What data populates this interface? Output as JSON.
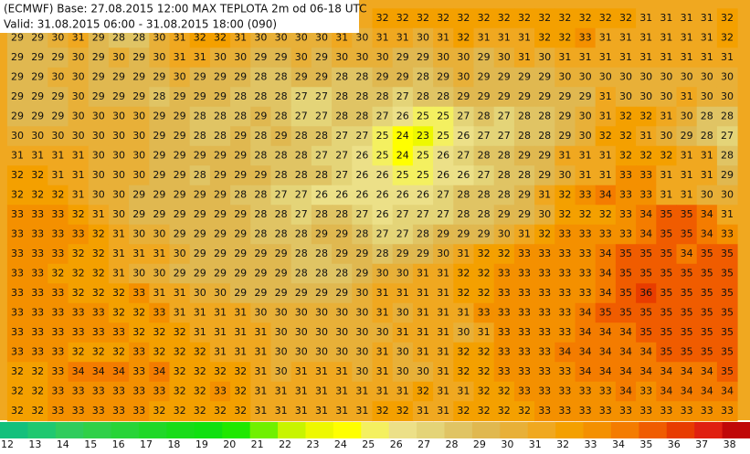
{
  "header": {
    "lines": [
      "(ECMWF) Base: 27.08.2015 12:00 MAX TEPLOTA 2m od 06-18 UTC",
      "Valid: 31.08.2015 06:00 - 31.08.2015 18:00 (090)"
    ]
  },
  "grid": {
    "rows": [
      [
        32,
        32,
        32,
        32,
        32,
        32,
        32,
        32,
        32,
        32,
        32,
        32,
        32,
        31,
        31,
        31,
        31,
        32
      ],
      [
        29,
        29,
        30,
        31,
        29,
        28,
        28,
        30,
        31,
        32,
        32,
        31,
        30,
        30,
        30,
        30,
        31,
        30,
        31,
        31,
        30,
        31,
        32,
        31,
        31,
        31,
        32,
        32,
        33,
        31,
        31,
        31,
        31,
        31,
        31,
        32
      ],
      [
        29,
        29,
        29,
        30,
        29,
        30,
        29,
        30,
        31,
        31,
        30,
        30,
        29,
        29,
        30,
        29,
        30,
        30,
        30,
        29,
        29,
        30,
        30,
        29,
        30,
        31,
        30,
        31,
        31,
        31,
        31,
        31,
        31,
        31,
        31,
        31
      ],
      [
        29,
        29,
        30,
        30,
        29,
        29,
        29,
        29,
        30,
        29,
        29,
        29,
        28,
        28,
        29,
        29,
        28,
        28,
        29,
        29,
        28,
        29,
        30,
        29,
        29,
        29,
        29,
        30,
        30,
        30,
        30,
        30,
        30,
        30,
        30,
        30
      ],
      [
        29,
        29,
        29,
        30,
        29,
        29,
        29,
        28,
        29,
        29,
        29,
        28,
        28,
        28,
        27,
        27,
        28,
        28,
        28,
        27,
        28,
        28,
        29,
        29,
        29,
        29,
        29,
        29,
        29,
        31,
        30,
        30,
        30,
        31,
        30,
        30
      ],
      [
        29,
        29,
        29,
        30,
        30,
        30,
        30,
        29,
        29,
        28,
        28,
        28,
        29,
        28,
        27,
        27,
        28,
        28,
        27,
        26,
        25,
        25,
        27,
        28,
        27,
        28,
        28,
        29,
        30,
        31,
        32,
        32,
        31,
        30,
        28,
        28
      ],
      [
        30,
        30,
        30,
        30,
        30,
        30,
        30,
        29,
        29,
        28,
        28,
        29,
        28,
        29,
        28,
        28,
        27,
        27,
        25,
        24,
        23,
        25,
        26,
        27,
        27,
        28,
        28,
        29,
        30,
        32,
        32,
        31,
        30,
        29,
        28,
        27
      ],
      [
        31,
        31,
        31,
        31,
        30,
        30,
        30,
        29,
        29,
        29,
        29,
        29,
        28,
        28,
        28,
        27,
        27,
        26,
        25,
        24,
        25,
        26,
        27,
        28,
        28,
        29,
        29,
        31,
        31,
        31,
        32,
        32,
        32,
        31,
        31,
        28
      ],
      [
        32,
        32,
        31,
        31,
        30,
        30,
        30,
        29,
        29,
        28,
        29,
        29,
        29,
        28,
        28,
        28,
        27,
        26,
        26,
        25,
        25,
        26,
        26,
        27,
        28,
        28,
        29,
        30,
        31,
        31,
        33,
        33,
        31,
        31,
        31,
        29
      ],
      [
        32,
        32,
        32,
        31,
        30,
        30,
        29,
        29,
        29,
        29,
        29,
        28,
        28,
        27,
        27,
        26,
        26,
        26,
        26,
        26,
        26,
        27,
        28,
        28,
        28,
        29,
        31,
        32,
        33,
        34,
        33,
        33,
        31,
        31,
        30,
        30
      ],
      [
        33,
        33,
        33,
        32,
        31,
        30,
        29,
        29,
        29,
        29,
        29,
        29,
        28,
        28,
        27,
        28,
        28,
        27,
        26,
        27,
        27,
        27,
        28,
        28,
        29,
        29,
        30,
        32,
        32,
        32,
        33,
        34,
        35,
        35,
        34,
        31
      ],
      [
        33,
        33,
        33,
        33,
        32,
        31,
        30,
        30,
        29,
        29,
        29,
        29,
        28,
        28,
        28,
        29,
        29,
        28,
        27,
        27,
        28,
        29,
        29,
        29,
        30,
        31,
        32,
        33,
        33,
        33,
        33,
        34,
        35,
        35,
        34,
        33
      ],
      [
        33,
        33,
        33,
        32,
        32,
        31,
        31,
        31,
        30,
        29,
        29,
        29,
        29,
        29,
        28,
        28,
        29,
        29,
        28,
        29,
        29,
        30,
        31,
        32,
        32,
        33,
        33,
        33,
        33,
        34,
        35,
        35,
        35,
        34,
        35,
        35
      ],
      [
        33,
        33,
        32,
        32,
        32,
        31,
        30,
        30,
        29,
        29,
        29,
        29,
        29,
        29,
        28,
        28,
        28,
        29,
        30,
        30,
        31,
        31,
        32,
        32,
        33,
        33,
        33,
        33,
        33,
        34,
        35,
        35,
        35,
        35,
        35,
        35
      ],
      [
        33,
        33,
        33,
        32,
        32,
        32,
        33,
        31,
        31,
        30,
        30,
        29,
        29,
        29,
        29,
        29,
        29,
        30,
        31,
        31,
        31,
        31,
        32,
        32,
        33,
        33,
        33,
        33,
        33,
        34,
        35,
        36,
        35,
        35,
        35,
        35
      ],
      [
        33,
        33,
        33,
        33,
        33,
        32,
        32,
        33,
        31,
        31,
        31,
        31,
        30,
        30,
        30,
        30,
        30,
        30,
        31,
        30,
        31,
        31,
        31,
        33,
        33,
        33,
        33,
        33,
        34,
        35,
        35,
        35,
        35,
        35,
        35,
        35
      ],
      [
        33,
        33,
        33,
        33,
        33,
        33,
        32,
        32,
        32,
        31,
        31,
        31,
        31,
        30,
        30,
        30,
        30,
        30,
        30,
        31,
        31,
        31,
        30,
        31,
        33,
        33,
        33,
        33,
        34,
        34,
        34,
        35,
        35,
        35,
        35,
        35
      ],
      [
        33,
        33,
        33,
        32,
        32,
        32,
        33,
        32,
        32,
        32,
        31,
        31,
        31,
        30,
        30,
        30,
        30,
        30,
        31,
        30,
        31,
        31,
        32,
        32,
        33,
        33,
        33,
        34,
        34,
        34,
        34,
        34,
        35,
        35,
        35,
        35
      ],
      [
        32,
        32,
        33,
        34,
        34,
        34,
        33,
        34,
        32,
        32,
        32,
        32,
        31,
        30,
        31,
        31,
        31,
        30,
        31,
        30,
        30,
        31,
        32,
        32,
        33,
        33,
        33,
        33,
        34,
        34,
        34,
        34,
        34,
        34,
        34,
        35
      ],
      [
        32,
        32,
        33,
        33,
        33,
        33,
        33,
        33,
        32,
        32,
        33,
        32,
        31,
        31,
        31,
        31,
        31,
        31,
        31,
        31,
        32,
        31,
        31,
        32,
        32,
        33,
        33,
        33,
        33,
        33,
        34,
        33,
        34,
        34,
        34,
        34
      ],
      [
        32,
        32,
        33,
        33,
        33,
        33,
        33,
        32,
        32,
        32,
        32,
        32,
        31,
        31,
        31,
        31,
        31,
        31,
        32,
        32,
        31,
        31,
        32,
        32,
        32,
        32,
        33,
        33,
        33,
        33,
        33,
        33,
        33,
        33,
        33,
        33
      ]
    ]
  },
  "legend": {
    "labels": [
      12,
      13,
      14,
      15,
      16,
      17,
      18,
      19,
      20,
      21,
      22,
      23,
      24,
      25,
      26,
      27,
      28,
      29,
      30,
      31,
      32,
      33,
      34,
      35,
      36,
      37,
      38
    ],
    "colors": [
      "#14c07c",
      "#20c870",
      "#30cc5c",
      "#30d048",
      "#28d438",
      "#20d828",
      "#18dc18",
      "#10e010",
      "#20e800",
      "#70f000",
      "#c8f400",
      "#eef800",
      "#ffff00",
      "#f4f060",
      "#ece088",
      "#e4d478",
      "#e0c464",
      "#e0b850",
      "#e8b038",
      "#f0a820",
      "#f4a000",
      "#f49000",
      "#f47c00",
      "#f05c00",
      "#e83c00",
      "#e02010",
      "#c00808"
    ]
  }
}
